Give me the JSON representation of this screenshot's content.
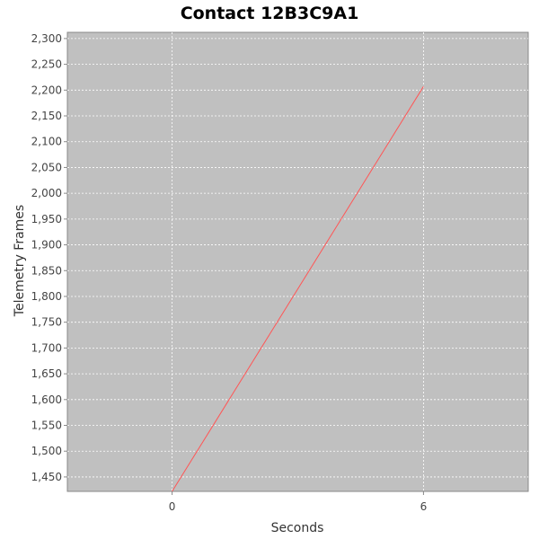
{
  "chart_data": {
    "type": "line",
    "title": "Contact 12B3C9A1",
    "xlabel": "Seconds",
    "ylabel": "Telemetry Frames",
    "xlim": [
      -2.5,
      8.5
    ],
    "ylim": [
      1422,
      2312
    ],
    "x_ticks": [
      0,
      6
    ],
    "y_ticks": [
      1450,
      1500,
      1550,
      1600,
      1650,
      1700,
      1750,
      1800,
      1850,
      1900,
      1950,
      2000,
      2050,
      2100,
      2150,
      2200,
      2250,
      2300
    ],
    "y_tick_labels": [
      "1,450",
      "1,500",
      "1,550",
      "1,600",
      "1,650",
      "1,700",
      "1,750",
      "1,800",
      "1,850",
      "1,900",
      "1,950",
      "2,000",
      "2,050",
      "2,100",
      "2,150",
      "2,200",
      "2,250",
      "2,300"
    ],
    "grid": true,
    "legend": "none",
    "series": [
      {
        "color": "#ff5555",
        "x": [
          0,
          6
        ],
        "y": [
          1422,
          2207
        ]
      }
    ],
    "plot_background": "#c0c0c0",
    "gridline_color": "#ffffff"
  }
}
